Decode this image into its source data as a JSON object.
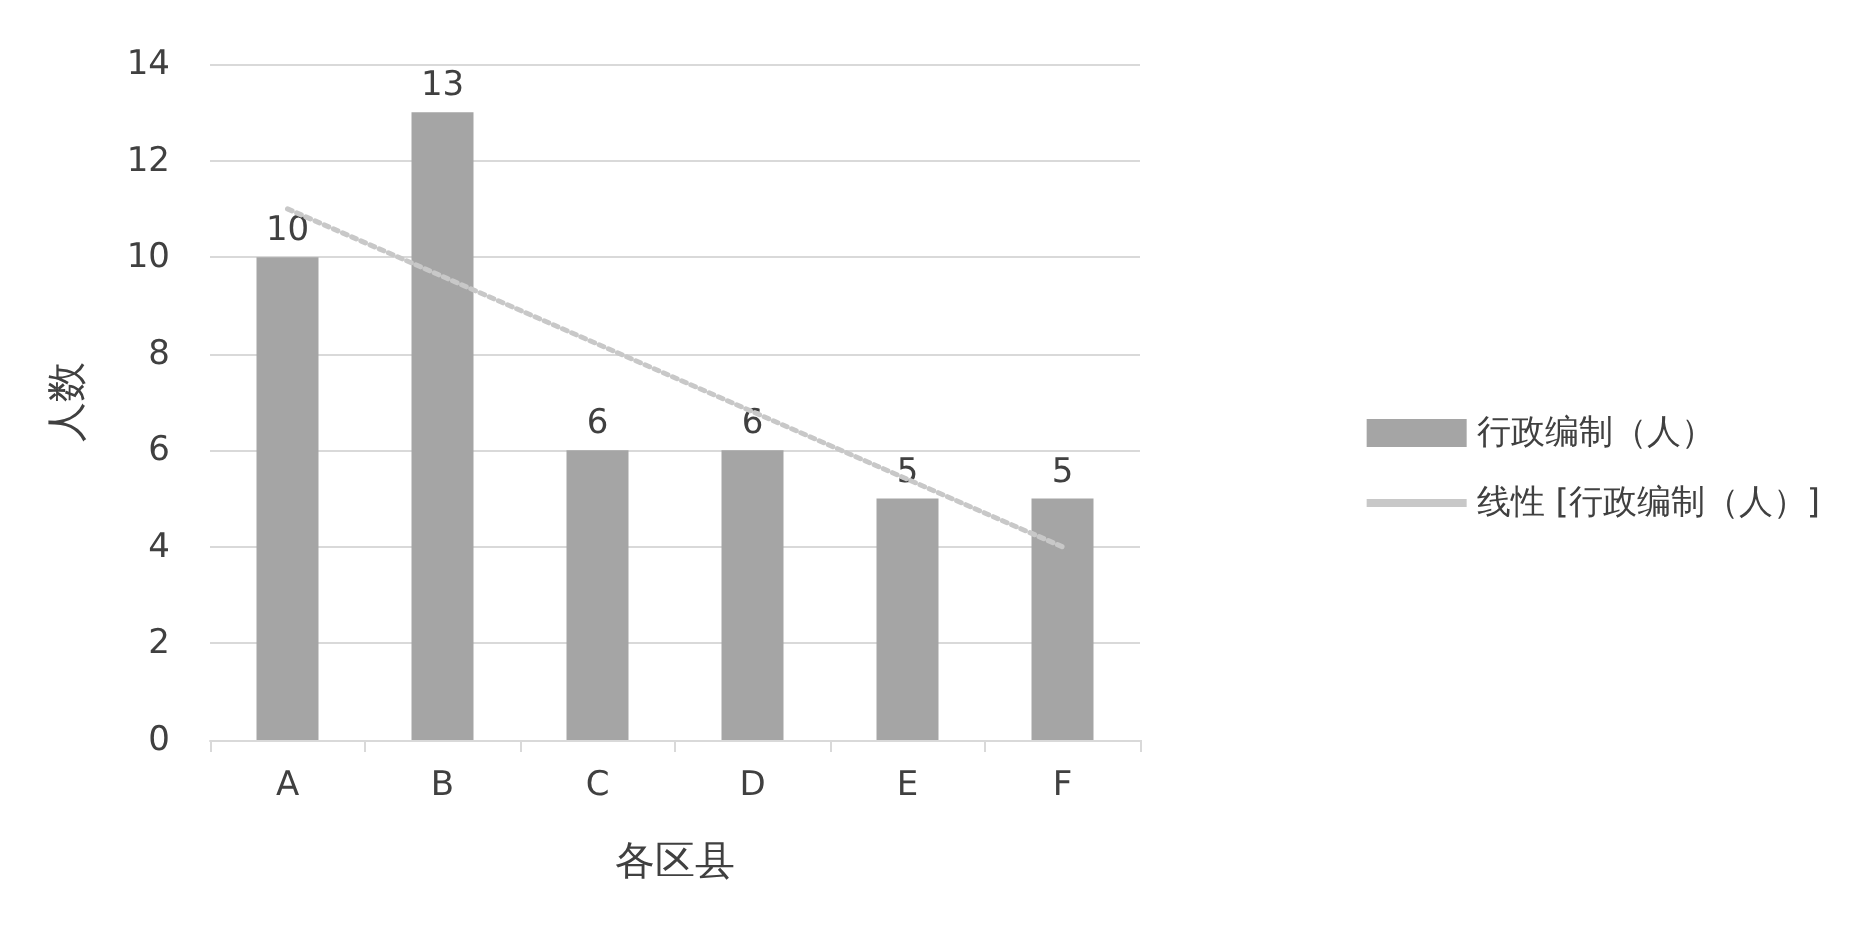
{
  "chart_data": {
    "type": "bar",
    "xlabel": "各区县",
    "ylabel": "人数",
    "categories": [
      "A",
      "B",
      "C",
      "D",
      "E",
      "F"
    ],
    "series": [
      {
        "name": "行政编制（人）",
        "color": "#a5a5a5",
        "values": [
          10,
          13,
          6,
          6,
          5,
          5
        ],
        "value_labels": [
          "10",
          "13",
          "6",
          "6",
          "5",
          "5"
        ]
      },
      {
        "name": "线性 [行政编制（人）]",
        "type": "line",
        "color": "#c8c8c8",
        "x": [
          "A",
          "F"
        ],
        "values": [
          11,
          4
        ],
        "line_style": "dotted",
        "marker": "none"
      }
    ],
    "ylim": [
      0,
      14
    ],
    "yticks": [
      0,
      2,
      4,
      6,
      8,
      10,
      12,
      14
    ],
    "grid": "y",
    "legend": "right"
  }
}
